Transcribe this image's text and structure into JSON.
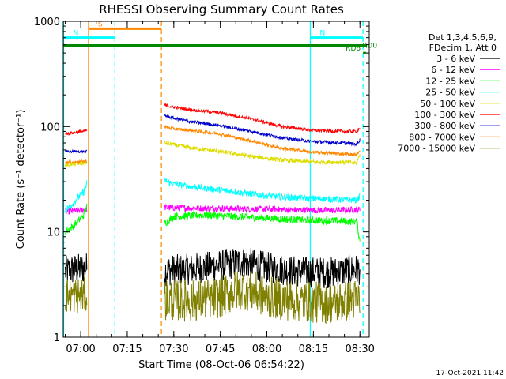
{
  "chart_data": {
    "type": "line",
    "title": "RHESSI Observing Summary Count Rates",
    "xlabel": "Start Time (08-Oct-06 06:54:22)",
    "ylabel": "Count Rate (s⁻¹ detector⁻¹)",
    "yscale": "log",
    "ylim": [
      1,
      1000
    ],
    "xlim": [
      "06:54:22",
      "08:33:00"
    ],
    "x_ticks": [
      "07:00",
      "07:15",
      "07:30",
      "07:45",
      "08:00",
      "08:15",
      "08:30"
    ],
    "y_ticks": [
      "1",
      "10",
      "100",
      "1000"
    ],
    "grid": false,
    "legend_header": [
      "Det 1,3,4,5,6,9,",
      "FDecim 1, Att 0"
    ],
    "series": [
      {
        "name": "3 - 6 keV",
        "color": "#000000",
        "segments": [
          {
            "t": [
              "06:55",
              "06:58",
              "07:01",
              "07:02"
            ],
            "v": [
              4.2,
              4.4,
              4.5,
              4.6
            ],
            "noise": 0.3
          },
          {
            "t": [
              "07:27",
              "07:35",
              "07:45",
              "07:52",
              "08:00",
              "08:10",
              "08:20",
              "08:30"
            ],
            "v": [
              4.3,
              4.4,
              4.8,
              5.2,
              4.6,
              4.2,
              4.1,
              4.4
            ],
            "noise": 0.3
          }
        ]
      },
      {
        "name": "6 - 12 keV",
        "color": "#ff00ff",
        "segments": [
          {
            "t": [
              "06:55",
              "06:58",
              "07:01",
              "07:02"
            ],
            "v": [
              15.5,
              15.8,
              16.2,
              16.5
            ],
            "noise": 0.06
          },
          {
            "t": [
              "07:27",
              "07:35",
              "07:45",
              "08:00",
              "08:10",
              "08:20",
              "08:30"
            ],
            "v": [
              17,
              16.8,
              16.7,
              16.4,
              16.2,
              16.0,
              16.3
            ],
            "noise": 0.06
          }
        ]
      },
      {
        "name": "12 - 25 keV",
        "color": "#00ff00",
        "segments": [
          {
            "t": [
              "06:55",
              "06:57",
              "06:59",
              "07:01",
              "07:02"
            ],
            "v": [
              10,
              11,
              12.5,
              14.5,
              17.5
            ],
            "noise": 0.07
          },
          {
            "t": [
              "07:27",
              "07:30",
              "07:40",
              "07:50",
              "08:00",
              "08:10",
              "08:20",
              "08:29",
              "08:30"
            ],
            "v": [
              12,
              14,
              14.5,
              14,
              13.5,
              13,
              12.8,
              12.5,
              8
            ],
            "noise": 0.07
          }
        ]
      },
      {
        "name": "25 - 50 keV",
        "color": "#00ffff",
        "segments": [
          {
            "t": [
              "06:55",
              "06:57",
              "06:59",
              "07:01",
              "07:02"
            ],
            "v": [
              16,
              18,
              21,
              24,
              29
            ],
            "noise": 0.07
          },
          {
            "t": [
              "07:27",
              "07:29",
              "07:35",
              "07:45",
              "08:00",
              "08:10",
              "08:20",
              "08:29",
              "08:30"
            ],
            "v": [
              31,
              29,
              27,
              25,
              22,
              21,
              20.5,
              20,
              22
            ],
            "noise": 0.06
          }
        ]
      },
      {
        "name": "50 - 100 keV",
        "color": "#dddd00",
        "segments": [
          {
            "t": [
              "06:55",
              "06:58",
              "07:01",
              "07:02"
            ],
            "v": [
              43,
              44,
              45,
              46
            ],
            "noise": 0.04
          },
          {
            "t": [
              "07:27",
              "07:29",
              "07:35",
              "07:45",
              "07:55",
              "08:05",
              "08:15",
              "08:25",
              "08:29",
              "08:30"
            ],
            "v": [
              70,
              68,
              63,
              58,
              52,
              48,
              46,
              46,
              45,
              55
            ],
            "noise": 0.04
          }
        ]
      },
      {
        "name": "100 - 300 keV",
        "color": "#ff0000",
        "segments": [
          {
            "t": [
              "06:55",
              "06:58",
              "07:01",
              "07:02"
            ],
            "v": [
              85,
              88,
              90,
              92
            ],
            "noise": 0.03
          },
          {
            "t": [
              "07:27",
              "07:29",
              "07:35",
              "07:45",
              "07:55",
              "08:05",
              "08:15",
              "08:25",
              "08:29",
              "08:30"
            ],
            "v": [
              160,
              155,
              145,
              135,
              118,
              100,
              92,
              90,
              90,
              98
            ],
            "noise": 0.03
          }
        ]
      },
      {
        "name": "300 - 800 keV",
        "color": "#0000cc",
        "segments": [
          {
            "t": [
              "06:55",
              "06:58",
              "07:01",
              "07:02"
            ],
            "v": [
              58,
              58,
              58,
              58
            ],
            "noise": 0.025
          },
          {
            "t": [
              "07:27",
              "07:29",
              "07:35",
              "07:45",
              "07:55",
              "08:05",
              "08:15",
              "08:25",
              "08:29",
              "08:30"
            ],
            "v": [
              128,
              122,
              112,
              102,
              90,
              78,
              72,
              70,
              68,
              75
            ],
            "noise": 0.03
          }
        ]
      },
      {
        "name": "800 - 7000 keV",
        "color": "#ff8800",
        "segments": [
          {
            "t": [
              "06:55",
              "06:58",
              "07:01",
              "07:02"
            ],
            "v": [
              46,
              46,
              47,
              47
            ],
            "noise": 0.025
          },
          {
            "t": [
              "07:27",
              "07:29",
              "07:35",
              "07:45",
              "07:55",
              "08:05",
              "08:15",
              "08:25",
              "08:29",
              "08:30"
            ],
            "v": [
              100,
              96,
              92,
              85,
              73,
              62,
              57,
              55,
              54,
              60
            ],
            "noise": 0.03
          }
        ]
      },
      {
        "name": "7000 - 15000 keV",
        "color": "#808000",
        "segments": [
          {
            "t": [
              "06:55",
              "06:58",
              "07:01",
              "07:02"
            ],
            "v": [
              2.5,
              2.5,
              2.5,
              2.5
            ],
            "noise": 0.35
          },
          {
            "t": [
              "07:27",
              "07:35",
              "07:45",
              "07:52",
              "08:00",
              "08:10",
              "08:20",
              "08:30"
            ],
            "v": [
              2.3,
              2.2,
              2.4,
              2.9,
              2.4,
              2.2,
              2.1,
              2.3
            ],
            "noise": 0.4
          }
        ]
      }
    ],
    "attenuator_lines": [
      {
        "t": "07:02:30",
        "color": "#ff8800",
        "style": "solid"
      },
      {
        "t": "07:26",
        "color": "#ff8800",
        "style": "dashed"
      },
      {
        "t": "06:54:30",
        "color": "#00ffff",
        "style": "solid"
      },
      {
        "t": "07:11",
        "color": "#00ffff",
        "style": "dashed"
      },
      {
        "t": "08:14",
        "color": "#00ffff",
        "style": "solid"
      },
      {
        "t": "08:31",
        "color": "#00ffff",
        "style": "dashed"
      }
    ],
    "flags": [
      {
        "label": "S",
        "color": "#ff8800",
        "t_start": "07:02:30",
        "t_end": "07:26",
        "level": 850
      },
      {
        "label": "N",
        "color": "#00ffff",
        "t_start": "06:54:30",
        "t_end": "07:11",
        "level": 700
      },
      {
        "label": "N",
        "color": "#00ffff",
        "t_start": "08:14",
        "t_end": "08:31",
        "level": 700
      },
      {
        "label": "",
        "color": "#008800",
        "t_start": "06:54:30",
        "t_end": "08:31",
        "level": 590
      },
      {
        "label": "RD0",
        "color": "#008800",
        "t_start": "08:31",
        "t_end": "08:31",
        "level": 590
      },
      {
        "label": "RD6",
        "color": "#008800",
        "t_start": "08:31",
        "t_end": "08:32",
        "level": 500
      }
    ],
    "footer": "17-Oct-2021 11:42"
  }
}
